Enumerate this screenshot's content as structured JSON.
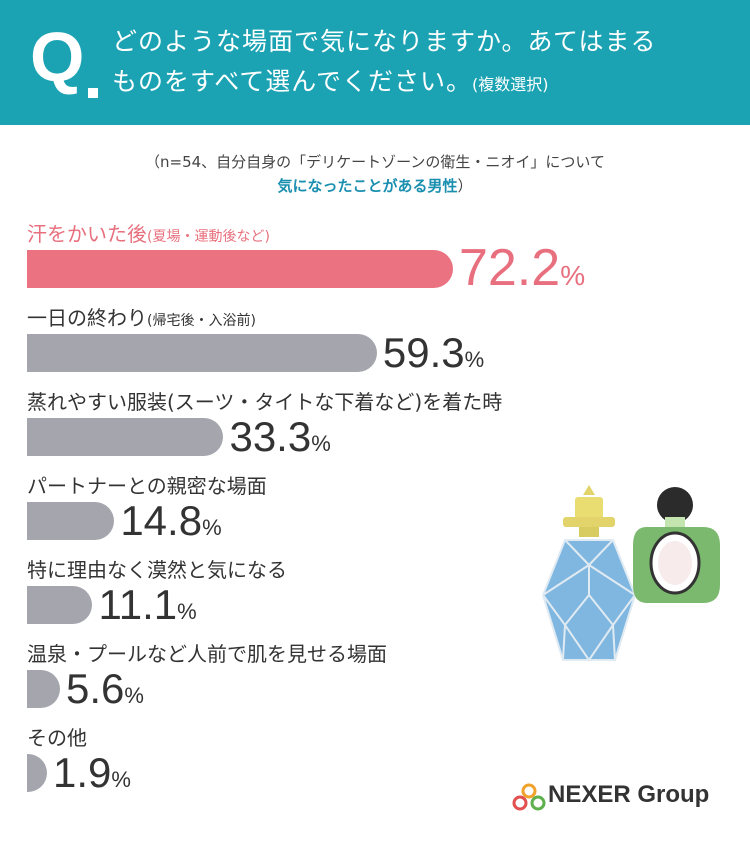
{
  "header": {
    "q_mark": "Q",
    "question_line1": "どのような場面で気になりますか。あてはまる",
    "question_line2": "ものをすべて選んでください。",
    "question_suffix": "(複数選択)"
  },
  "note": {
    "line1": "（n=54、自分自身の「デリケートゾーンの衛生・ニオイ」について",
    "line2_highlight": "気になったことがある男性",
    "line2_end": "）"
  },
  "logo": {
    "text": "NEXER Group"
  },
  "colors": {
    "header": "#1ba3b3",
    "top_bar": "#eb7381",
    "bar": "#a5a6ad",
    "top_text": "#e8707e"
  },
  "chart_data": {
    "type": "bar",
    "orientation": "horizontal",
    "unit": "%",
    "categories": [
      "汗をかいた後",
      "一日の終わり",
      "蒸れやすい服装(スーツ・タイトな下着など)を着た時",
      "パートナーとの親密な場面",
      "特に理由なく漠然と気になる",
      "温泉・プールなど人前で肌を見せる場面",
      "その他"
    ],
    "category_notes": [
      "(夏場・運動後など)",
      "(帰宅後・入浴前)",
      "",
      "",
      "",
      "",
      ""
    ],
    "value_labels": [
      "72.2",
      "59.3",
      "33.3",
      "14.8",
      "11.1",
      "5.6",
      "1.9"
    ],
    "values": [
      72.2,
      59.3,
      33.3,
      14.8,
      11.1,
      5.6,
      1.9
    ],
    "xlim": [
      0,
      100
    ]
  }
}
